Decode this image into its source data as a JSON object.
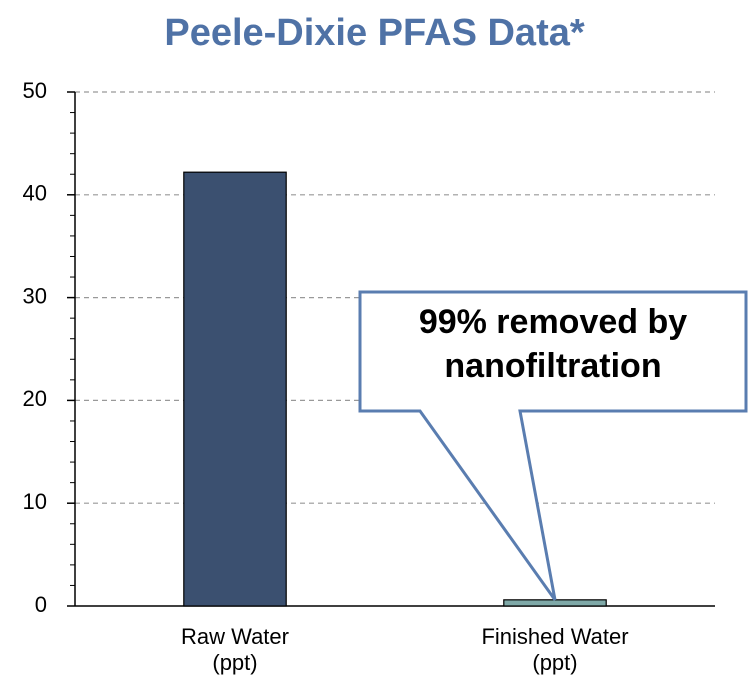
{
  "chart_data": {
    "type": "bar",
    "title": "Peele-Dixie PFAS Data*",
    "categories": [
      "Raw Water\n(ppt)",
      "Finished Water\n(ppt)"
    ],
    "values": [
      42.2,
      0.6
    ],
    "colors": [
      "#3b5070",
      "#7fa9a8"
    ],
    "ylim": [
      0,
      50
    ],
    "yticks": [
      0,
      10,
      20,
      30,
      40,
      50
    ],
    "yminorticks": [
      2,
      4,
      6,
      8,
      12,
      14,
      16,
      18,
      22,
      24,
      26,
      28,
      32,
      34,
      36,
      38,
      42,
      44,
      46,
      48
    ],
    "grid": true,
    "annotation": "99% removed by\nnanofiltration"
  }
}
